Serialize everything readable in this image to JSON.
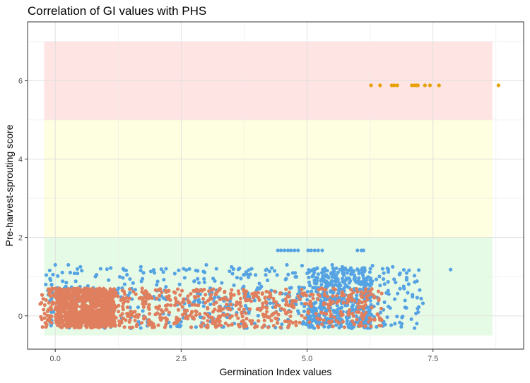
{
  "chart_data": {
    "type": "scatter",
    "title": "Correlation of GI values with PHS",
    "xlabel": "Germination Index values",
    "ylabel": "Pre-harvest-sprouting score",
    "xlim": [
      -0.55,
      9.3
    ],
    "ylim": [
      -0.85,
      7.5
    ],
    "x_ticks": [
      0.0,
      2.5,
      5.0,
      7.5
    ],
    "x_tick_labels": [
      "0.0",
      "2.5",
      "5.0",
      "7.5"
    ],
    "y_ticks": [
      0,
      2,
      4,
      6
    ],
    "y_tick_labels": [
      "0",
      "2",
      "4",
      "6"
    ],
    "grid": true,
    "legend": "none",
    "bands": [
      {
        "xmin": -0.22,
        "xmax": 8.68,
        "ymin": -0.5,
        "ymax": 2,
        "color": "#e6fbe6"
      },
      {
        "xmin": -0.22,
        "xmax": 8.68,
        "ymin": 2,
        "ymax": 5,
        "color": "#fefee0"
      },
      {
        "xmin": -0.22,
        "xmax": 8.68,
        "ymin": 5,
        "ymax": 7,
        "color": "#ffe4e4"
      }
    ],
    "series": [
      {
        "color": "#e8a000",
        "x": [
          6.27,
          6.45,
          6.68,
          6.73,
          6.79,
          7.08,
          7.13,
          7.17,
          7.2,
          7.34,
          7.44,
          7.62,
          8.8
        ],
        "y": [
          5.88,
          5.88,
          5.88,
          5.88,
          5.88,
          5.88,
          5.88,
          5.88,
          5.88,
          5.88,
          5.88,
          5.88,
          5.88
        ]
      },
      {
        "color": "#56a3e3",
        "x": [
          4.42,
          4.48,
          4.55,
          4.62,
          4.68,
          4.75,
          4.82,
          5.02,
          5.08,
          5.15,
          5.22,
          5.3,
          6.0,
          6.08,
          6.12,
          0.0,
          0.26,
          0.5,
          0.9,
          1.1,
          1.35,
          1.7,
          2.2,
          2.55,
          3.0,
          3.2,
          3.5,
          3.9,
          4.3,
          4.6,
          4.9,
          5.2,
          5.5,
          5.7,
          6.1,
          6.3,
          6.5,
          6.7,
          7.85,
          7.3
        ],
        "y": [
          1.67,
          1.67,
          1.67,
          1.67,
          1.67,
          1.67,
          1.67,
          1.67,
          1.67,
          1.67,
          1.67,
          1.67,
          1.67,
          1.67,
          1.67,
          1.3,
          1.3,
          1.25,
          1.2,
          1.22,
          1.2,
          1.25,
          1.2,
          1.2,
          1.3,
          1.2,
          1.25,
          1.2,
          1.22,
          1.3,
          1.28,
          1.22,
          1.3,
          1.25,
          1.22,
          1.28,
          1.2,
          1.25,
          1.18,
          0.32
        ],
        "cloud": {
          "n": 950,
          "xmin": -0.2,
          "xmax": 7.3,
          "ymin": -0.32,
          "ymax": 1.22,
          "dense_from": 5.0,
          "dense_to": 6.3
        }
      },
      {
        "color": "#e07f5e",
        "cloud": {
          "n": 1500,
          "xmin": -0.3,
          "xmax": 6.5,
          "ymin": -0.3,
          "ymax": 0.7,
          "dense_from": 0.0,
          "dense_to": 1.2
        }
      }
    ]
  }
}
